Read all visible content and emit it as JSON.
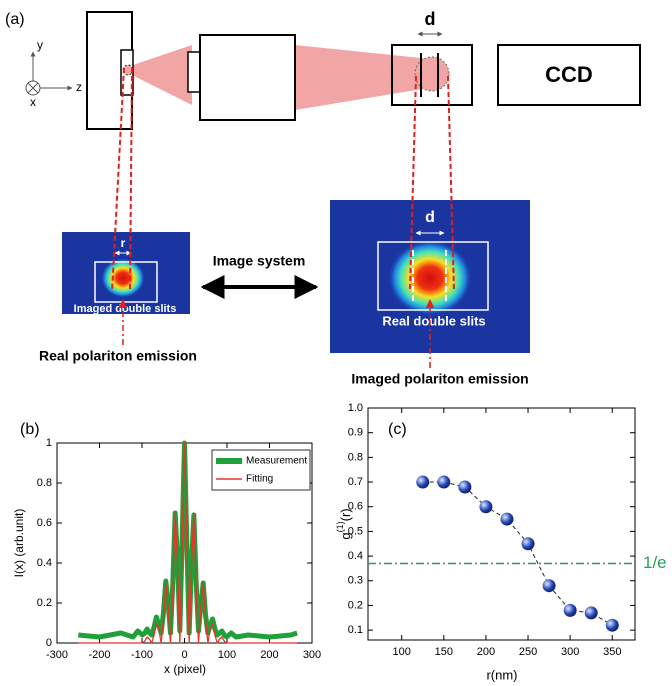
{
  "diagram": {
    "panel_label": "(a)",
    "axes": {
      "y": "y",
      "x": "x",
      "z": "z"
    },
    "slit_width_label": "d",
    "detector": "CCD",
    "imaged_image": {
      "size_label": "r",
      "caption": "Imaged double slits",
      "source": "Real polariton emission"
    },
    "link": "Image system",
    "real_image": {
      "size_label": "d",
      "caption": "Real double slits",
      "source": "Imaged polariton emission"
    }
  },
  "chart_data": [
    {
      "type": "line",
      "title": "(b)",
      "xlabel": "x (pixel)",
      "ylabel": "I(x) (arb.unit)",
      "x": [
        -250,
        -200,
        -150,
        -121,
        -110,
        -99,
        -93.5,
        -88,
        -82.5,
        -77,
        -71.5,
        -66,
        -60.5,
        -55,
        -49.5,
        -44,
        -38.5,
        -33,
        -27.5,
        -22,
        -16.5,
        -11,
        -5.5,
        0,
        5.5,
        11,
        16.5,
        22,
        27.5,
        33,
        38.5,
        44,
        49.5,
        55,
        60.5,
        66,
        71.5,
        77,
        82.5,
        88,
        93.5,
        99,
        110,
        121,
        150,
        200,
        250,
        265
      ],
      "series": [
        {
          "name": "Measurement",
          "color": "#1fa03a",
          "values": [
            0.04,
            0.03,
            0.05,
            0.03,
            0.06,
            0.04,
            0.05,
            0.07,
            0.05,
            0.04,
            0.08,
            0.13,
            0.09,
            0.05,
            0.15,
            0.31,
            0.2,
            0.05,
            0.3,
            0.65,
            0.42,
            0.06,
            0.52,
            1.0,
            0.5,
            0.05,
            0.4,
            0.64,
            0.3,
            0.06,
            0.19,
            0.3,
            0.14,
            0.05,
            0.09,
            0.12,
            0.07,
            0.04,
            0.05,
            0.06,
            0.04,
            0.03,
            0.05,
            0.03,
            0.04,
            0.03,
            0.04,
            0.05
          ]
        },
        {
          "name": "Fitting",
          "color": "#e8332a",
          "values": [
            0,
            0,
            0,
            0,
            0,
            0,
            0.01,
            0.03,
            0.02,
            0,
            0.04,
            0.1,
            0.07,
            0,
            0.12,
            0.3,
            0.18,
            0,
            0.26,
            0.65,
            0.39,
            0,
            0.49,
            1,
            0.49,
            0,
            0.39,
            0.65,
            0.26,
            0,
            0.18,
            0.3,
            0.12,
            0,
            0.07,
            0.1,
            0.04,
            0,
            0.02,
            0.03,
            0.01,
            0,
            0,
            0,
            0,
            0,
            0,
            0
          ]
        }
      ],
      "xlim": [
        -300,
        300
      ],
      "xticks": [
        -300,
        -200,
        -100,
        0,
        100,
        200,
        300
      ],
      "ylim": [
        0,
        1
      ],
      "yticks": [
        0,
        0.2,
        0.4,
        0.6,
        0.8,
        1
      ],
      "legend": "upper right",
      "grid": false
    },
    {
      "type": "scatter",
      "title": "(c)",
      "xlabel": "r(nm)",
      "ylabel": {
        "base": "g",
        "sup": "(1)",
        "rest": "(r)"
      },
      "x": [
        125,
        150,
        175,
        200,
        225,
        250,
        275,
        300,
        325,
        350
      ],
      "series": [
        {
          "color": "#2446b8",
          "values": [
            0.7,
            0.7,
            0.68,
            0.6,
            0.55,
            0.45,
            0.28,
            0.18,
            0.17,
            0.12
          ]
        }
      ],
      "reference_line": {
        "value": 0.37,
        "label": "1/e",
        "color": "#2ca05a"
      },
      "xlim": [
        60,
        377
      ],
      "xticks": [
        100,
        150,
        200,
        250,
        300,
        350
      ],
      "ylim": [
        0.06,
        1.0
      ],
      "yticks": [
        0.1,
        0.2,
        0.3,
        0.4,
        0.5,
        0.6,
        0.7,
        0.8,
        0.9,
        {
          "value": 1.0,
          "label": "1.0"
        }
      ],
      "grid": false
    }
  ]
}
